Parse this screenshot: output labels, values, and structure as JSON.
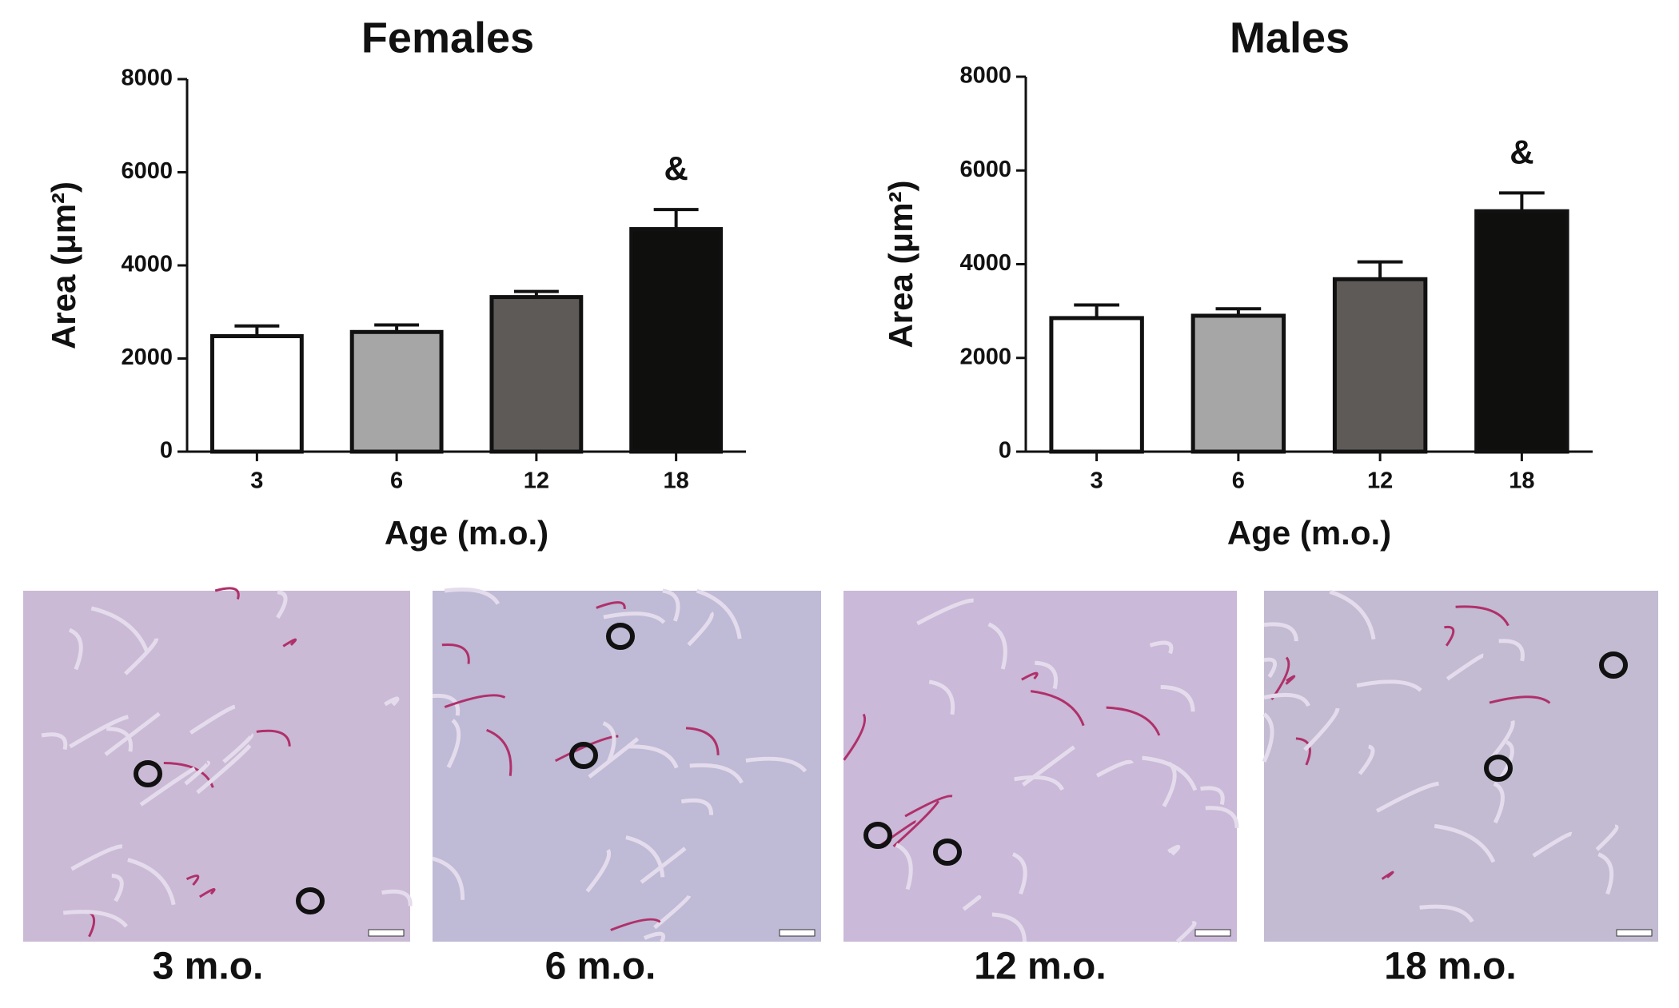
{
  "chart_data": [
    {
      "type": "bar",
      "title": "Females",
      "x_label": "Age (m.o.)",
      "y_label": "Area (μm²)",
      "categories": [
        "3",
        "6",
        "12",
        "18"
      ],
      "values": [
        2480,
        2570,
        3320,
        4780
      ],
      "errors": [
        220,
        150,
        120,
        420
      ],
      "markers": [
        null,
        null,
        null,
        "&"
      ],
      "colors": [
        "#ffffff",
        "#a6a6a6",
        "#5e5a58",
        "#0f0f0d"
      ],
      "ylim": [
        0,
        8000
      ],
      "yticks": [
        0,
        2000,
        4000,
        6000,
        8000
      ]
    },
    {
      "type": "bar",
      "title": "Males",
      "x_label": "Age (m.o.)",
      "y_label": "Area (μm²)",
      "categories": [
        "3",
        "6",
        "12",
        "18"
      ],
      "values": [
        2850,
        2900,
        3680,
        5130
      ],
      "errors": [
        280,
        150,
        370,
        390
      ],
      "markers": [
        null,
        null,
        null,
        "&"
      ],
      "colors": [
        "#ffffff",
        "#a6a6a6",
        "#5e5a58",
        "#0f0f0d"
      ],
      "ylim": [
        0,
        8000
      ],
      "yticks": [
        0,
        2000,
        4000,
        6000,
        8000
      ]
    }
  ],
  "images": [
    {
      "caption": "3 m.o."
    },
    {
      "caption": "6 m.o."
    },
    {
      "caption": "12 m.o."
    },
    {
      "caption": "18 m.o."
    }
  ]
}
